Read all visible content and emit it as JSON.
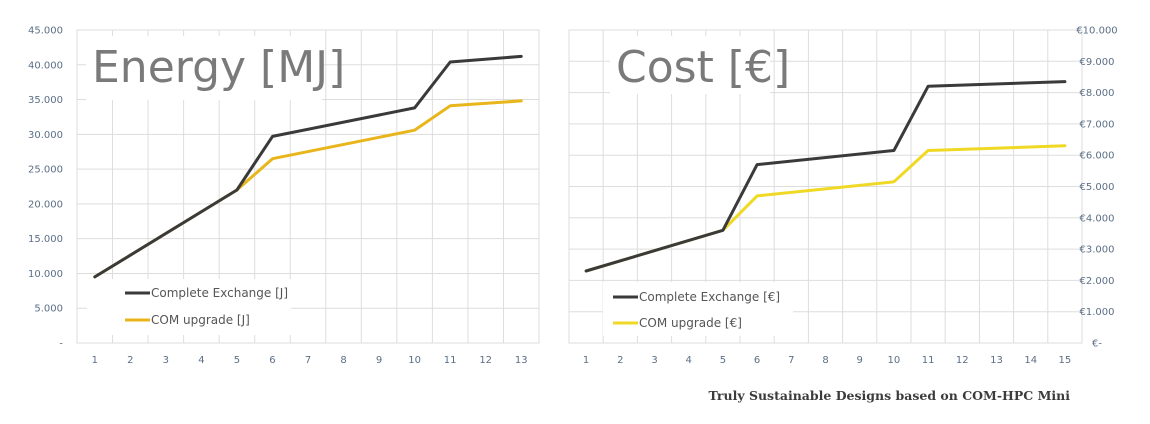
{
  "caption": "Truly Sustainable Designs based on COM-HPC Mini",
  "colors": {
    "complete": "#3a3a3a",
    "energy_upgrade": "#e8b51a",
    "cost_upgrade": "#f0d925",
    "grid": "#dddddd",
    "tick": "#5c6f86"
  },
  "chart_data": [
    {
      "type": "line",
      "title": "Energy [MJ]",
      "x": [
        1,
        2,
        3,
        4,
        5,
        6,
        7,
        8,
        9,
        10,
        11,
        12,
        13
      ],
      "xtick_labels": [
        "1",
        "2",
        "3",
        "4",
        "5",
        "6",
        "7",
        "8",
        "9",
        "10",
        "11",
        "12",
        "13"
      ],
      "ylim": [
        0,
        45000
      ],
      "ytick_values": [
        0,
        5000,
        10000,
        15000,
        20000,
        25000,
        30000,
        35000,
        40000,
        45000
      ],
      "ytick_labels": [
        "-",
        "5.000",
        "10.000",
        "15.000",
        "20.000",
        "25.000",
        "30.000",
        "35.000",
        "40.000",
        "45.000"
      ],
      "y_axis_side": "left",
      "grid": true,
      "legend_position": "bottom-left",
      "series": [
        {
          "name": "Complete Exchange [J]",
          "color_key": "complete",
          "points": [
            [
              1,
              9500
            ],
            [
              5,
              22000
            ],
            [
              6,
              29700
            ],
            [
              10,
              33800
            ],
            [
              11,
              40400
            ],
            [
              13,
              41200
            ]
          ]
        },
        {
          "name": "COM upgrade [J]",
          "color_key": "energy_upgrade",
          "points": [
            [
              1,
              9500
            ],
            [
              5,
              22000
            ],
            [
              6,
              26500
            ],
            [
              10,
              30600
            ],
            [
              11,
              34100
            ],
            [
              13,
              34800
            ]
          ]
        }
      ]
    },
    {
      "type": "line",
      "title": "Cost [€]",
      "x": [
        1,
        2,
        3,
        4,
        5,
        6,
        7,
        8,
        9,
        10,
        11,
        12,
        13,
        14,
        15
      ],
      "xtick_labels": [
        "1",
        "2",
        "3",
        "4",
        "5",
        "6",
        "7",
        "8",
        "9",
        "10",
        "11",
        "12",
        "13",
        "14",
        "15"
      ],
      "ylim": [
        0,
        10000
      ],
      "ytick_values": [
        0,
        1000,
        2000,
        3000,
        4000,
        5000,
        6000,
        7000,
        8000,
        9000,
        10000
      ],
      "ytick_labels": [
        "€-",
        "€1.000",
        "€2.000",
        "€3.000",
        "€4.000",
        "€5.000",
        "€6.000",
        "€7.000",
        "€8.000",
        "€9.000",
        "€10.000"
      ],
      "y_axis_side": "right",
      "grid": true,
      "legend_position": "bottom-left",
      "series": [
        {
          "name": "Complete Exchange [€]",
          "color_key": "complete",
          "points": [
            [
              1,
              2300
            ],
            [
              5,
              3600
            ],
            [
              6,
              5700
            ],
            [
              10,
              6150
            ],
            [
              11,
              8200
            ],
            [
              15,
              8350
            ]
          ]
        },
        {
          "name": "COM upgrade [€]",
          "color_key": "cost_upgrade",
          "points": [
            [
              1,
              2300
            ],
            [
              5,
              3600
            ],
            [
              6,
              4700
            ],
            [
              10,
              5150
            ],
            [
              11,
              6150
            ],
            [
              15,
              6300
            ]
          ]
        }
      ]
    }
  ]
}
